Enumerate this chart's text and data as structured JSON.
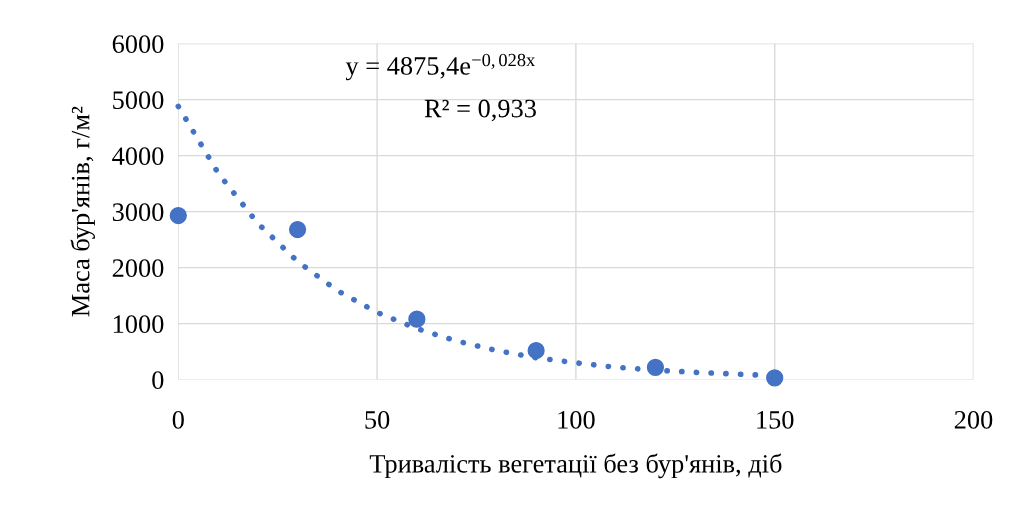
{
  "chart_data": {
    "type": "scatter",
    "xlabel": "Тривалість вегетації без бур'янів, діб",
    "ylabel": "Маса бур'янів, г/м²",
    "x": [
      0,
      30,
      60,
      90,
      120,
      150
    ],
    "series": [
      {
        "color": "#4472c4",
        "marker": "circle",
        "values": [
          2930,
          2680,
          1080,
          520,
          220,
          30
        ]
      },
      {
        "type": "line",
        "color": "#4472c4",
        "marker": "none",
        "line_style": "dotted",
        "x": [
          0,
          10,
          20,
          30,
          40,
          50,
          60,
          70,
          80,
          90,
          100,
          110,
          120,
          130,
          140,
          150
        ],
        "values": [
          4880,
          3690,
          2790,
          2110,
          1590,
          1200,
          910,
          690,
          520,
          390,
          300,
          220,
          170,
          130,
          100,
          70
        ]
      }
    ],
    "annotations": [
      "y = 4875,4e$^{−0,028x}$",
      "R² = 0,933"
    ],
    "xlim": [
      0,
      200
    ],
    "xticks": [
      0,
      50,
      100,
      150,
      200
    ],
    "ylim": [
      0,
      6000
    ],
    "yticks": [
      0,
      1000,
      2000,
      3000,
      4000,
      5000,
      6000
    ],
    "grid": true
  }
}
